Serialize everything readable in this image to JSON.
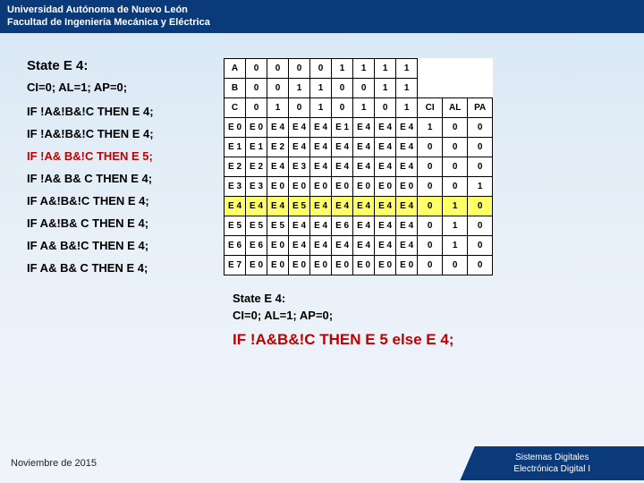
{
  "header": {
    "line1": "Universidad Autónoma de Nuevo León",
    "line2": "Facultad de Ingeniería Mecánica y Eléctrica"
  },
  "left": {
    "state_title": "State E 4:",
    "outputs": "CI=0; AL=1; AP=0;",
    "rules": [
      "IF !A&!B&!C THEN E 4;",
      "IF !A&!B&!C THEN E 4;",
      "IF !A& B&!C THEN E 5;",
      "IF !A& B& C THEN E 4;",
      "IF  A&!B&!C THEN E 4;",
      "IF A&!B& C THEN E 4;",
      "IF A& B&!C THEN E 4;",
      "IF A& B& C THEN E 4;"
    ]
  },
  "table": {
    "head_rows": [
      [
        "A",
        "0",
        "0",
        "0",
        "0",
        "1",
        "1",
        "1",
        "1",
        "",
        "",
        ""
      ],
      [
        "B",
        "0",
        "0",
        "1",
        "1",
        "0",
        "0",
        "1",
        "1",
        "",
        "",
        ""
      ],
      [
        "C",
        "0",
        "1",
        "0",
        "1",
        "0",
        "1",
        "0",
        "1",
        "CI",
        "AL",
        "PA"
      ]
    ],
    "body_rows": [
      {
        "cells": [
          "E 0",
          "E 0",
          "E 4",
          "E 4",
          "E 4",
          "E 1",
          "E 4",
          "E 4",
          "E 4",
          "1",
          "0",
          "0"
        ],
        "hl": false
      },
      {
        "cells": [
          "E 1",
          "E 1",
          "E 2",
          "E 4",
          "E 4",
          "E 4",
          "E 4",
          "E 4",
          "E 4",
          "0",
          "0",
          "0"
        ],
        "hl": false
      },
      {
        "cells": [
          "E 2",
          "E 2",
          "E 4",
          "E 3",
          "E 4",
          "E 4",
          "E 4",
          "E 4",
          "E 4",
          "0",
          "0",
          "0"
        ],
        "hl": false
      },
      {
        "cells": [
          "E 3",
          "E 3",
          "E 0",
          "E 0",
          "E 0",
          "E 0",
          "E 0",
          "E 0",
          "E 0",
          "0",
          "0",
          "1"
        ],
        "hl": false
      },
      {
        "cells": [
          "E 4",
          "E 4",
          "E 4",
          "E 5",
          "E 4",
          "E 4",
          "E 4",
          "E 4",
          "E 4",
          "0",
          "1",
          "0"
        ],
        "hl": true
      },
      {
        "cells": [
          "E 5",
          "E 5",
          "E 5",
          "E 4",
          "E 4",
          "E 6",
          "E 4",
          "E 4",
          "E 4",
          "0",
          "1",
          "0"
        ],
        "hl": false
      },
      {
        "cells": [
          "E 6",
          "E 6",
          "E 0",
          "E 4",
          "E 4",
          "E 4",
          "E 4",
          "E 4",
          "E 4",
          "0",
          "1",
          "0"
        ],
        "hl": false
      },
      {
        "cells": [
          "E 7",
          "E 0",
          "E 0",
          "E 0",
          "E 0",
          "E 0",
          "E 0",
          "E 0",
          "E 0",
          "0",
          "0",
          "0"
        ],
        "hl": false
      }
    ]
  },
  "summary": {
    "l1": "State E 4:",
    "l2": "CI=0; AL=1; AP=0;",
    "rule": "IF !A&B&!C THEN E 5 else E 4;"
  },
  "footer": {
    "date": "Noviembre de 2015",
    "course1": "Sistemas Digitales",
    "course2": "Electrónica Digital I"
  },
  "colors": {
    "header_bg": "#0a3a7a",
    "highlight": "#ffff66",
    "rule_red": "#c00000"
  }
}
